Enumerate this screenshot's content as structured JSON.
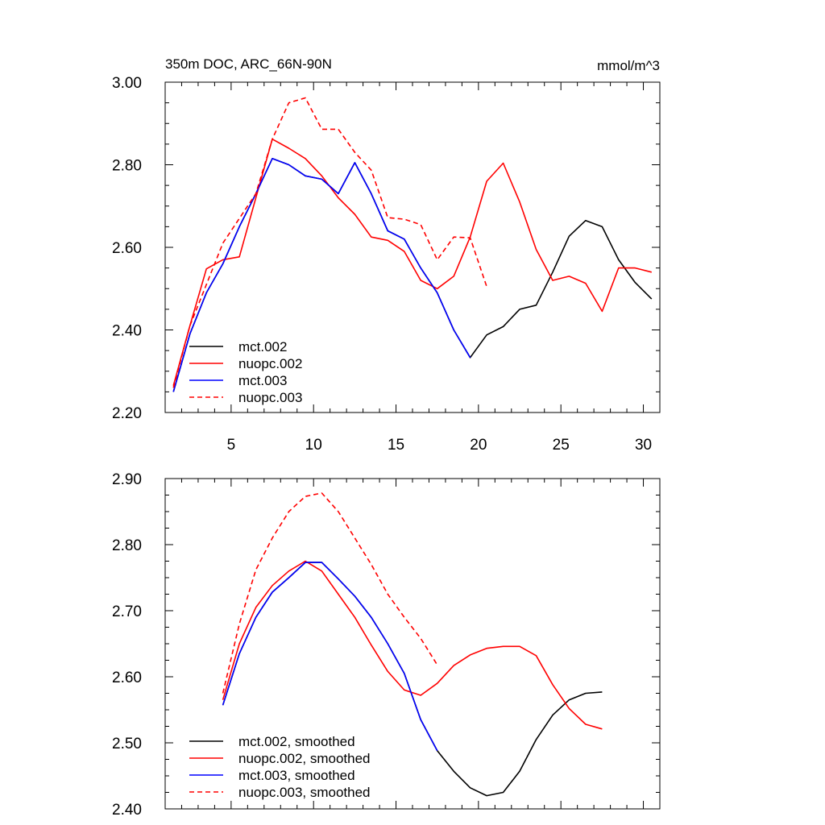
{
  "chart_data": [
    {
      "type": "line",
      "title": "350m DOC, ARC_66N-90N",
      "units": "mmol/m^3",
      "xlim": [
        1,
        31
      ],
      "ylim": [
        2.2,
        3.0
      ],
      "xticks": [
        5,
        10,
        15,
        20,
        25,
        30
      ],
      "xtick_labels": [
        "5",
        "10",
        "15",
        "20",
        "25",
        "30"
      ],
      "yticks": [
        2.2,
        2.4,
        2.6,
        2.8,
        3.0
      ],
      "ytick_labels": [
        "2.20",
        "2.40",
        "2.60",
        "2.80",
        "3.00"
      ],
      "legend": "bottom-left",
      "series": [
        {
          "name": "mct.002",
          "color": "#000000",
          "dash": "solid",
          "x": [
            1.5,
            2.5,
            3.5,
            4.5,
            5.5,
            6.5,
            7.5,
            8.5,
            9.5,
            10.5,
            11.5,
            12.5,
            13.5,
            14.5,
            15.5,
            16.5,
            17.5,
            18.5,
            19.5,
            20.5,
            21.5,
            22.5,
            23.5,
            24.5,
            25.5,
            26.5,
            27.5,
            28.5,
            29.5,
            30.5
          ],
          "y": [
            2.25,
            2.39,
            2.49,
            2.56,
            2.65,
            2.73,
            2.815,
            2.8,
            2.773,
            2.765,
            2.73,
            2.805,
            2.73,
            2.64,
            2.62,
            2.55,
            2.49,
            2.4,
            2.333,
            2.388,
            2.408,
            2.45,
            2.46,
            2.54,
            2.627,
            2.665,
            2.65,
            2.57,
            2.515,
            2.475
          ]
        },
        {
          "name": "nuopc.002",
          "color": "#ff0000",
          "dash": "solid",
          "x": [
            1.5,
            2.5,
            3.5,
            4.5,
            5.5,
            6.5,
            7.5,
            8.5,
            9.5,
            10.5,
            11.5,
            12.5,
            13.5,
            14.5,
            15.5,
            16.5,
            17.5,
            18.5,
            19.5,
            20.5,
            21.5,
            22.5,
            23.5,
            24.5,
            25.5,
            26.5,
            27.5,
            28.5,
            29.5,
            30.5
          ],
          "y": [
            2.265,
            2.41,
            2.548,
            2.57,
            2.577,
            2.72,
            2.862,
            2.84,
            2.815,
            2.773,
            2.72,
            2.68,
            2.625,
            2.617,
            2.59,
            2.52,
            2.5,
            2.53,
            2.625,
            2.76,
            2.804,
            2.71,
            2.595,
            2.52,
            2.53,
            2.513,
            2.445,
            2.55,
            2.55,
            2.54
          ]
        },
        {
          "name": "mct.003",
          "color": "#0000ff",
          "dash": "solid",
          "x": [
            1.5,
            2.5,
            3.5,
            4.5,
            5.5,
            6.5,
            7.5,
            8.5,
            9.5,
            10.5,
            11.5,
            12.5,
            13.5,
            14.5,
            15.5,
            16.5,
            17.5,
            18.5,
            19.5
          ],
          "y": [
            2.25,
            2.39,
            2.49,
            2.56,
            2.65,
            2.73,
            2.815,
            2.8,
            2.773,
            2.765,
            2.73,
            2.805,
            2.73,
            2.64,
            2.62,
            2.55,
            2.49,
            2.4,
            2.333
          ]
        },
        {
          "name": "nuopc.003",
          "color": "#ff0000",
          "dash": "dashed",
          "x": [
            1.5,
            2.5,
            3.5,
            4.5,
            5.5,
            6.5,
            7.5,
            8.5,
            9.5,
            10.5,
            11.5,
            12.5,
            13.5,
            14.5,
            15.5,
            16.5,
            17.5,
            18.5,
            19.5,
            20.5
          ],
          "y": [
            2.26,
            2.41,
            2.51,
            2.61,
            2.67,
            2.73,
            2.862,
            2.95,
            2.962,
            2.886,
            2.886,
            2.83,
            2.787,
            2.672,
            2.668,
            2.655,
            2.57,
            2.625,
            2.623,
            2.505
          ]
        }
      ]
    },
    {
      "type": "line",
      "xlim": [
        1,
        31
      ],
      "ylim": [
        2.4,
        2.9
      ],
      "xticks": [
        5,
        10,
        15,
        20,
        25,
        30
      ],
      "yticks": [
        2.4,
        2.5,
        2.6,
        2.7,
        2.8,
        2.9
      ],
      "ytick_labels": [
        "2.40",
        "2.50",
        "2.60",
        "2.70",
        "2.80",
        "2.90"
      ],
      "legend": "bottom-left",
      "series": [
        {
          "name": "mct.002, smoothed",
          "color": "#000000",
          "dash": "solid",
          "x": [
            4.5,
            5.5,
            6.5,
            7.5,
            8.5,
            9.5,
            10.5,
            11.5,
            12.5,
            13.5,
            14.5,
            15.5,
            16.5,
            17.5,
            18.5,
            19.5,
            20.5,
            21.5,
            22.5,
            23.5,
            24.5,
            25.5,
            26.5,
            27.5
          ],
          "y": [
            2.557,
            2.635,
            2.69,
            2.728,
            2.75,
            2.773,
            2.773,
            2.748,
            2.722,
            2.69,
            2.65,
            2.605,
            2.535,
            2.488,
            2.457,
            2.432,
            2.42,
            2.425,
            2.457,
            2.505,
            2.542,
            2.565,
            2.575,
            2.577
          ]
        },
        {
          "name": "nuopc.002, smoothed",
          "color": "#ff0000",
          "dash": "solid",
          "x": [
            4.5,
            5.5,
            6.5,
            7.5,
            8.5,
            9.5,
            10.5,
            11.5,
            12.5,
            13.5,
            14.5,
            15.5,
            16.5,
            17.5,
            18.5,
            19.5,
            20.5,
            21.5,
            22.5,
            23.5,
            24.5,
            25.5,
            26.5,
            27.5
          ],
          "y": [
            2.565,
            2.65,
            2.705,
            2.738,
            2.76,
            2.775,
            2.76,
            2.725,
            2.69,
            2.648,
            2.608,
            2.58,
            2.572,
            2.59,
            2.617,
            2.633,
            2.643,
            2.646,
            2.646,
            2.632,
            2.588,
            2.552,
            2.528,
            2.521
          ]
        },
        {
          "name": "mct.003, smoothed",
          "color": "#0000ff",
          "dash": "solid",
          "x": [
            4.5,
            5.5,
            6.5,
            7.5,
            8.5,
            9.5,
            10.5,
            11.5,
            12.5,
            13.5,
            14.5,
            15.5,
            16.5,
            17.5
          ],
          "y": [
            2.557,
            2.635,
            2.69,
            2.728,
            2.75,
            2.773,
            2.773,
            2.748,
            2.722,
            2.69,
            2.65,
            2.605,
            2.535,
            2.488
          ]
        },
        {
          "name": "nuopc.003, smoothed",
          "color": "#ff0000",
          "dash": "dashed",
          "x": [
            4.5,
            5.5,
            6.5,
            7.5,
            8.5,
            9.5,
            10.5,
            11.5,
            12.5,
            13.5,
            14.5,
            15.5,
            16.5,
            17.5
          ],
          "y": [
            2.575,
            2.68,
            2.762,
            2.81,
            2.85,
            2.873,
            2.878,
            2.85,
            2.81,
            2.77,
            2.725,
            2.69,
            2.658,
            2.618
          ]
        }
      ]
    }
  ]
}
